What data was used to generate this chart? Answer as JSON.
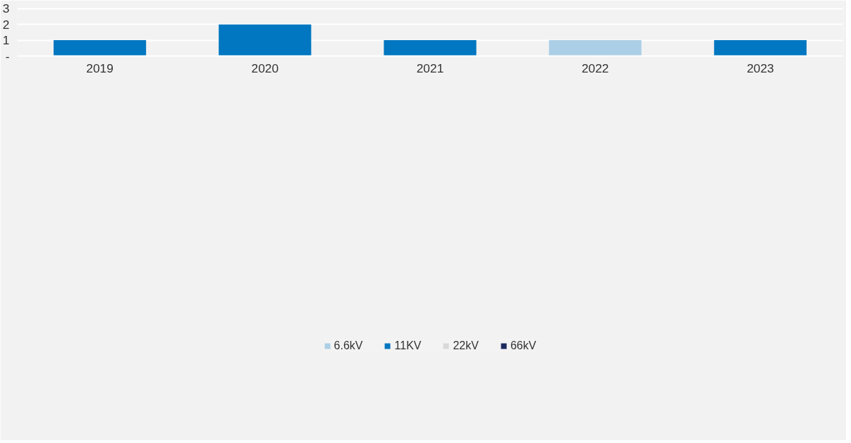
{
  "chart_data": {
    "type": "bar",
    "stacked": true,
    "categories": [
      "2019",
      "2020",
      "2021",
      "2022",
      "2023"
    ],
    "series": [
      {
        "name": "6.6kV",
        "color": "#abcfe6",
        "values": [
          0,
          0,
          0,
          1,
          0
        ]
      },
      {
        "name": "11KV",
        "color": "#0077c0",
        "values": [
          1,
          2,
          1,
          0,
          1
        ]
      },
      {
        "name": "22kV",
        "color": "#d9d9d9",
        "values": [
          0,
          0,
          0,
          0,
          0
        ]
      },
      {
        "name": "66kV",
        "color": "#1b2a5e",
        "values": [
          0,
          0,
          0,
          0,
          0
        ]
      }
    ],
    "ylim": [
      0,
      3.3
    ],
    "yticks": [
      {
        "value": 0,
        "label": "-"
      },
      1,
      2,
      3
    ],
    "grid": "y",
    "legend": "bottom"
  }
}
